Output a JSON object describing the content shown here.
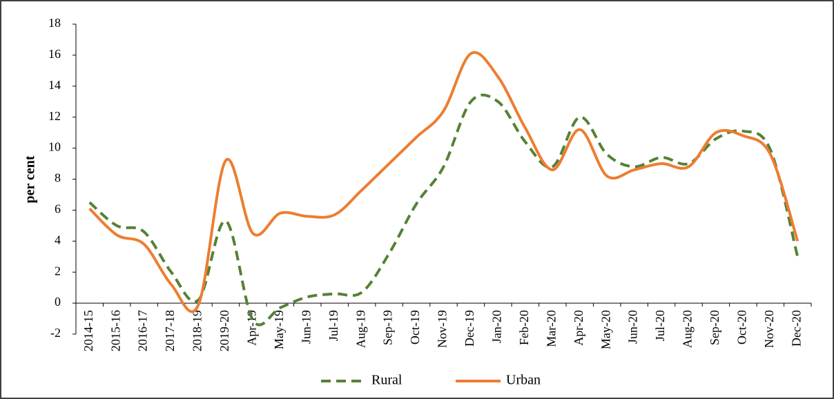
{
  "chart_data": {
    "type": "line",
    "y_label": "per cent",
    "categories": [
      "2014-15",
      "2015-16",
      "2016-17",
      "2017-18",
      "2018-19",
      "2019-20",
      "Apr-19",
      "May-19",
      "Jun-19",
      "Jul-19",
      "Aug-19",
      "Sep-19",
      "Oct-19",
      "Nov-19",
      "Dec-19",
      "Jan-20",
      "Feb-20",
      "Mar-20",
      "Apr-20",
      "May-20",
      "Jun-20",
      "Jul-20",
      "Aug-20",
      "Sep-20",
      "Oct-20",
      "Nov-20",
      "Dec-20"
    ],
    "series": [
      {
        "name": "Rural",
        "color": "#548235",
        "dashed": true,
        "values": [
          6.5,
          5.0,
          4.6,
          2.0,
          0.2,
          5.3,
          -1.1,
          -0.3,
          0.4,
          0.6,
          0.7,
          3.2,
          6.4,
          8.8,
          13.0,
          13.0,
          10.4,
          8.8,
          12.0,
          9.6,
          8.8,
          9.4,
          9.0,
          10.6,
          11.1,
          9.9,
          3.0
        ]
      },
      {
        "name": "Urban",
        "color": "#ED7D31",
        "dashed": false,
        "values": [
          6.1,
          4.4,
          3.8,
          1.2,
          -0.1,
          9.2,
          4.5,
          5.8,
          5.6,
          5.7,
          7.3,
          9.0,
          10.7,
          12.4,
          16.1,
          14.6,
          11.3,
          8.6,
          11.2,
          8.2,
          8.6,
          9.0,
          8.8,
          11.0,
          10.8,
          9.6,
          4.0
        ]
      }
    ],
    "ylim": [
      -2,
      18
    ],
    "yticks": [
      -2,
      0,
      2,
      4,
      6,
      8,
      10,
      12,
      14,
      16,
      18
    ],
    "legend": "bottom"
  }
}
